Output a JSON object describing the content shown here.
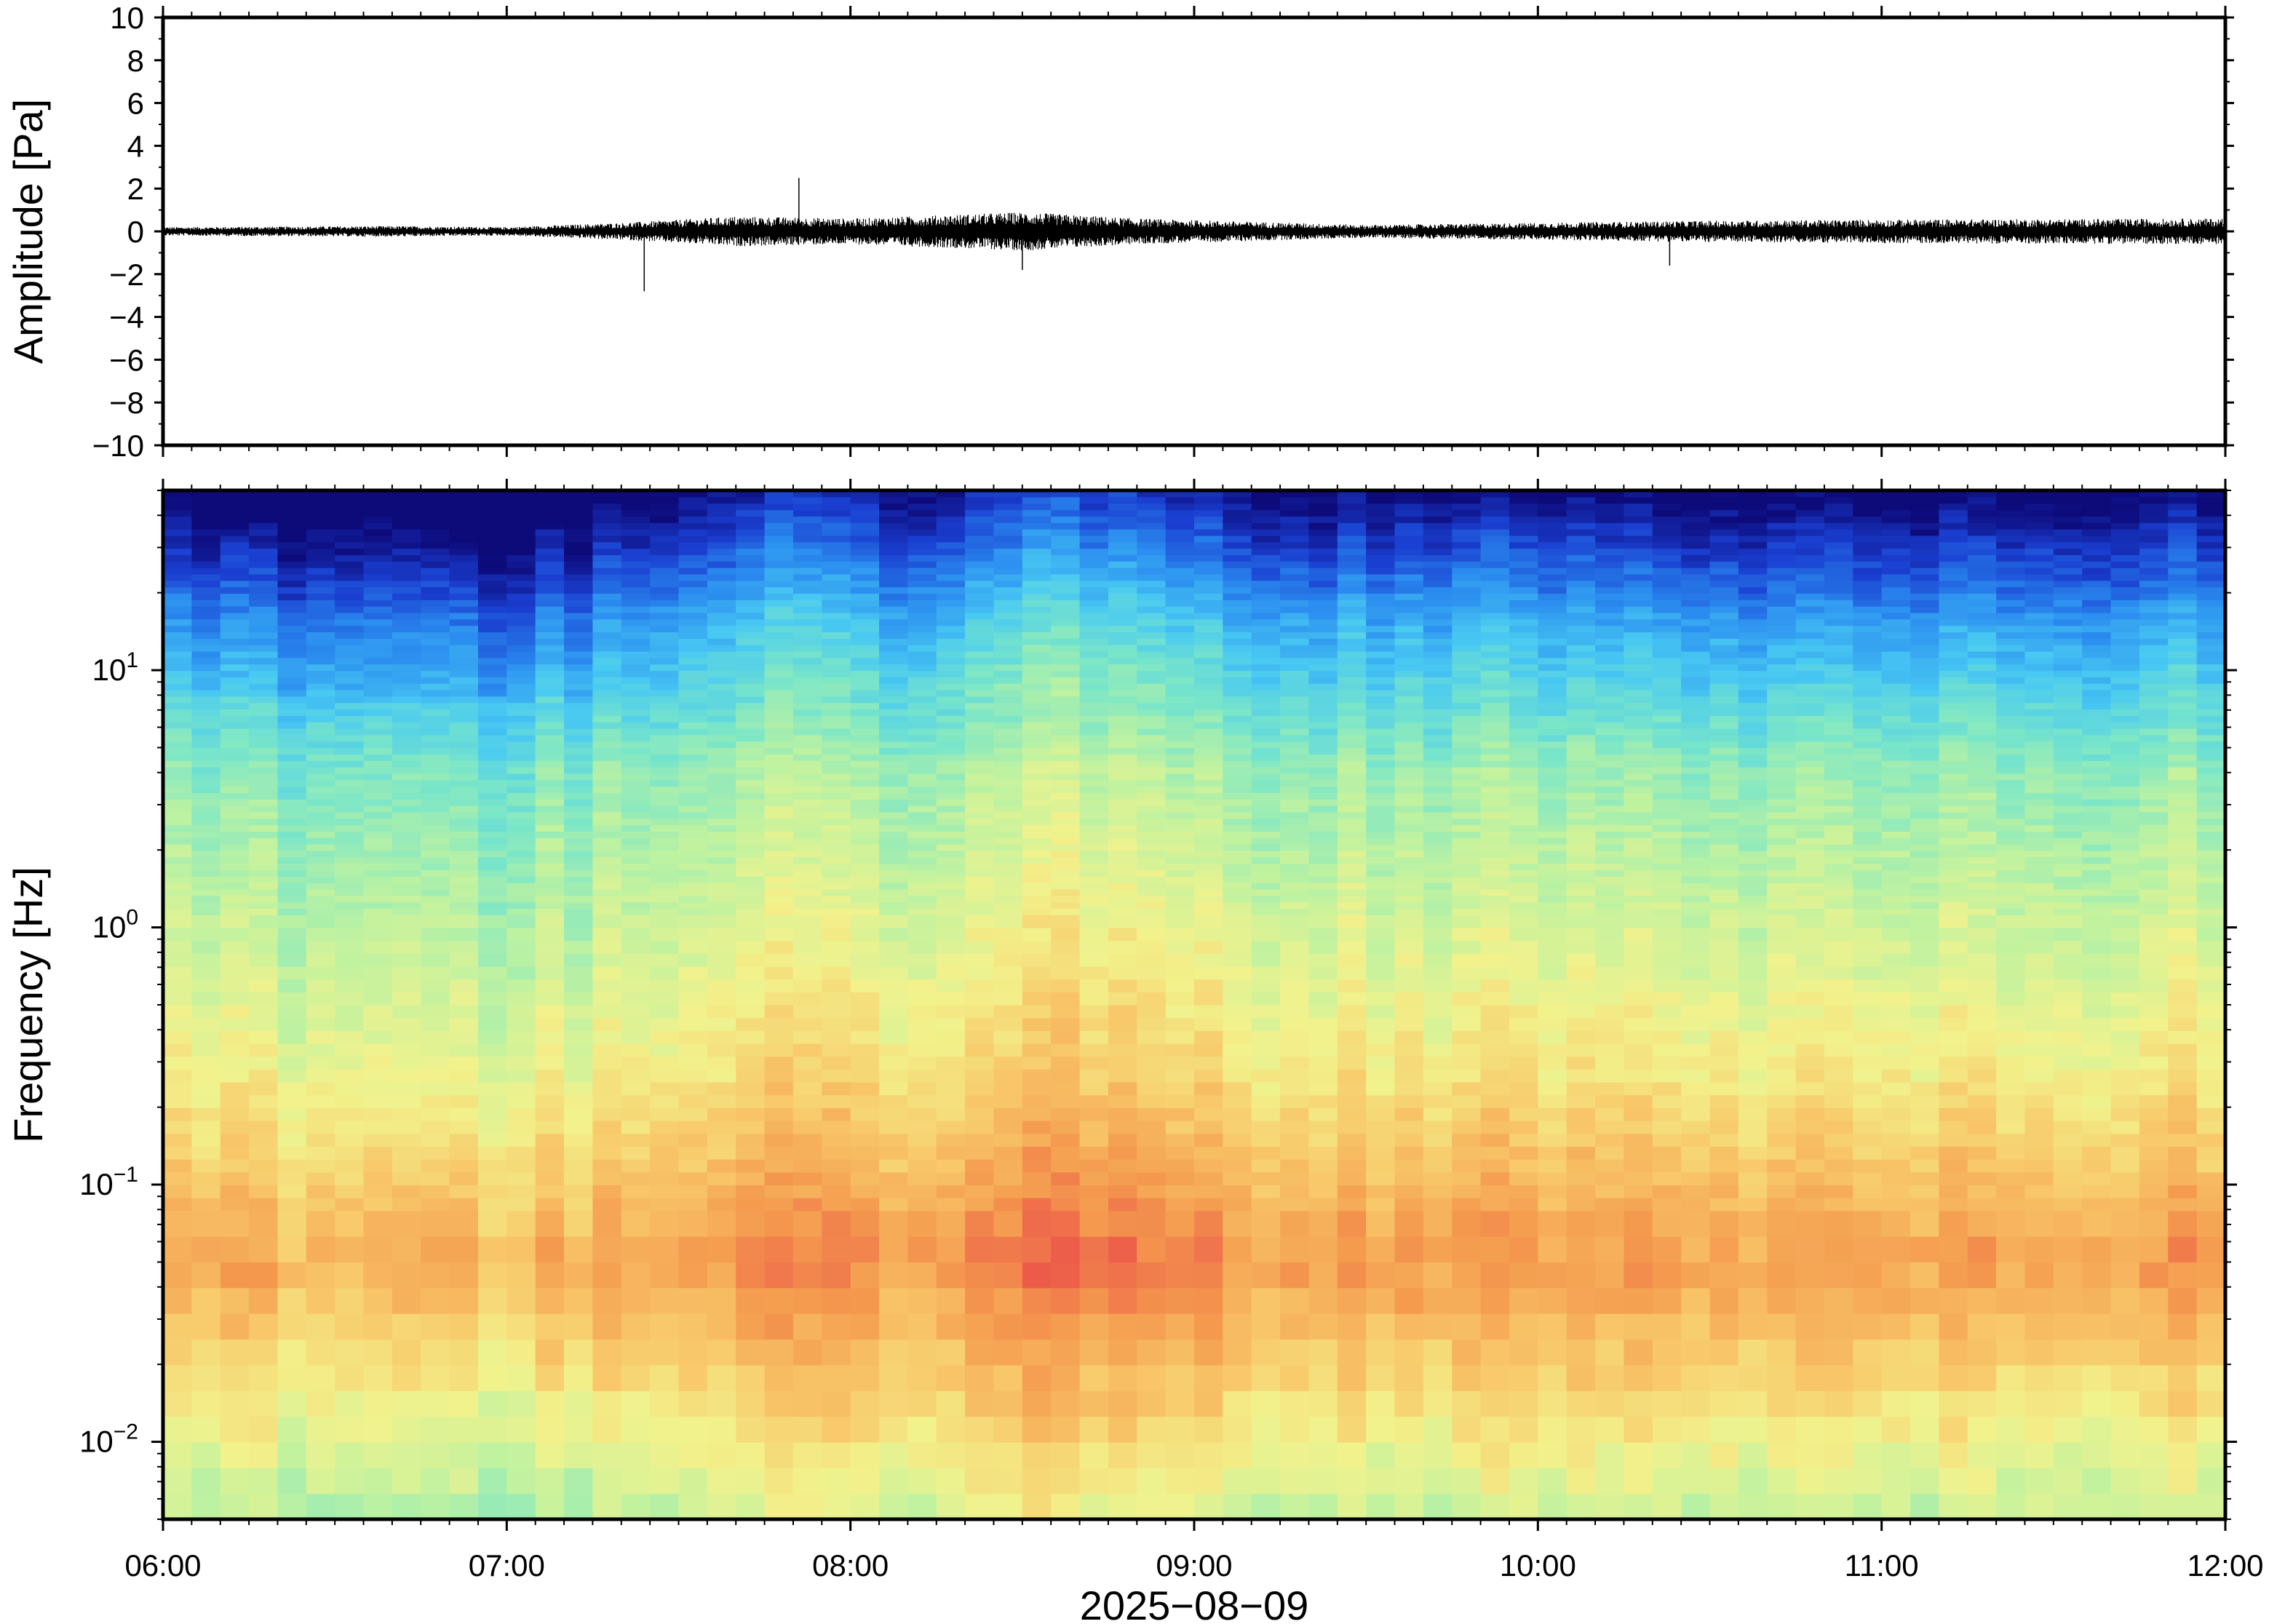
{
  "chart_data": [
    {
      "type": "line",
      "name": "waveform",
      "ylabel": "Amplitude [Pa]",
      "ylim": [
        -10,
        10
      ],
      "yticks": [
        10,
        8,
        6,
        4,
        2,
        0,
        -2,
        -4,
        -6,
        -8,
        -10
      ],
      "ytick_labels": [
        "10",
        "8",
        "6",
        "4",
        "2",
        "0",
        "−2",
        "−4",
        "−6",
        "−8",
        "−10"
      ],
      "x_range": [
        "06:00",
        "12:00"
      ],
      "noise_envelope_pa": [
        {
          "t": "06:00",
          "amp": 0.2
        },
        {
          "t": "06:40",
          "amp": 0.25
        },
        {
          "t": "07:00",
          "amp": 0.2
        },
        {
          "t": "07:20",
          "amp": 0.4
        },
        {
          "t": "07:40",
          "amp": 0.7
        },
        {
          "t": "08:00",
          "amp": 0.6
        },
        {
          "t": "08:30",
          "amp": 0.9
        },
        {
          "t": "08:50",
          "amp": 0.6
        },
        {
          "t": "09:30",
          "amp": 0.3
        },
        {
          "t": "10:00",
          "amp": 0.4
        },
        {
          "t": "10:30",
          "amp": 0.5
        },
        {
          "t": "11:00",
          "amp": 0.55
        },
        {
          "t": "12:00",
          "amp": 0.6
        }
      ],
      "spikes": [
        {
          "t": "07:24",
          "value": -2.8
        },
        {
          "t": "07:51",
          "value": 2.5
        },
        {
          "t": "08:30",
          "value": -1.8
        },
        {
          "t": "10:23",
          "value": -1.6
        }
      ],
      "grid": false
    },
    {
      "type": "heatmap",
      "name": "spectrogram",
      "ylabel": "Frequency [Hz]",
      "xlabel": "2025−08−09",
      "yscale": "log",
      "ylim": [
        0.005,
        50
      ],
      "yticks": [
        0.01,
        0.1,
        1,
        10
      ],
      "ytick_labels": [
        {
          "base": "10",
          "exp": "−2"
        },
        {
          "base": "10",
          "exp": "−1"
        },
        {
          "base": "10",
          "exp": "0"
        },
        {
          "base": "10",
          "exp": "1"
        }
      ],
      "x_range": [
        "06:00",
        "12:00"
      ],
      "xtick_labels": [
        "06:00",
        "07:00",
        "08:00",
        "09:00",
        "10:00",
        "11:00",
        "12:00"
      ],
      "colormap": [
        "#0d0a7a",
        "#1a3fd1",
        "#2b8ef0",
        "#48c9f2",
        "#7ae6c8",
        "#bff2a0",
        "#f2f28c",
        "#f8c86a",
        "#f49a4e",
        "#ec5a4a"
      ],
      "segment_intensity": [
        {
          "t": "06:00",
          "level": 0.35
        },
        {
          "t": "06:30",
          "level": 0.3
        },
        {
          "t": "07:00",
          "level": 0.2
        },
        {
          "t": "07:30",
          "level": 0.55
        },
        {
          "t": "07:50",
          "level": 0.8
        },
        {
          "t": "08:10",
          "level": 0.55
        },
        {
          "t": "08:30",
          "level": 0.9
        },
        {
          "t": "08:50",
          "level": 0.75
        },
        {
          "t": "09:20",
          "level": 0.5
        },
        {
          "t": "09:50",
          "level": 0.6
        },
        {
          "t": "10:20",
          "level": 0.45
        },
        {
          "t": "10:50",
          "level": 0.4
        },
        {
          "t": "11:30",
          "level": 0.5
        },
        {
          "t": "12:00",
          "level": 0.5
        }
      ],
      "grid": false
    }
  ]
}
